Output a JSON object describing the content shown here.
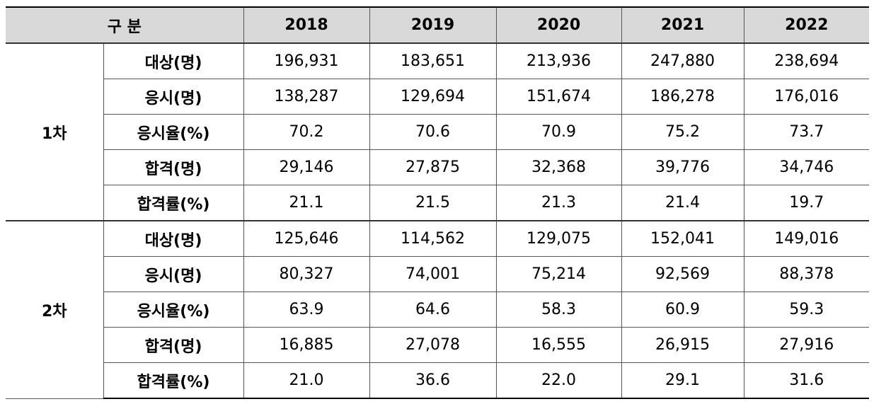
{
  "table": {
    "header": {
      "category": "구 분",
      "years": [
        "2018",
        "2019",
        "2020",
        "2021",
        "2022"
      ]
    },
    "groups": [
      {
        "name": "1차",
        "rows": [
          {
            "label": "대상(명)",
            "values": [
              "196,931",
              "183,651",
              "213,936",
              "247,880",
              "238,694"
            ]
          },
          {
            "label": "응시(명)",
            "values": [
              "138,287",
              "129,694",
              "151,674",
              "186,278",
              "176,016"
            ]
          },
          {
            "label": "응시율(%)",
            "values": [
              "70.2",
              "70.6",
              "70.9",
              "75.2",
              "73.7"
            ]
          },
          {
            "label": "합격(명)",
            "values": [
              "29,146",
              "27,875",
              "32,368",
              "39,776",
              "34,746"
            ]
          },
          {
            "label": "합격률(%)",
            "values": [
              "21.1",
              "21.5",
              "21.3",
              "21.4",
              "19.7"
            ]
          }
        ]
      },
      {
        "name": "2차",
        "rows": [
          {
            "label": "대상(명)",
            "values": [
              "125,646",
              "114,562",
              "129,075",
              "152,041",
              "149,016"
            ]
          },
          {
            "label": "응시(명)",
            "values": [
              "80,327",
              "74,001",
              "75,214",
              "92,569",
              "88,378"
            ]
          },
          {
            "label": "응시율(%)",
            "values": [
              "63.9",
              "64.6",
              "58.3",
              "60.9",
              "59.3"
            ]
          },
          {
            "label": "합격(명)",
            "values": [
              "16,885",
              "27,078",
              "16,555",
              "26,915",
              "27,916"
            ]
          },
          {
            "label": "합격률(%)",
            "values": [
              "21.0",
              "36.6",
              "22.0",
              "29.1",
              "31.6"
            ]
          }
        ]
      }
    ]
  }
}
